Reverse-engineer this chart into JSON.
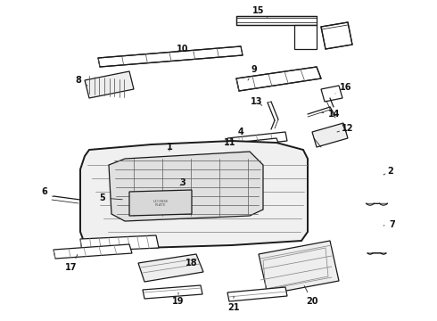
{
  "bg_color": "#ffffff",
  "line_color": "#1a1a1a",
  "label_color": "#111111",
  "label_fs": 7,
  "lw_thick": 1.4,
  "lw_med": 0.9,
  "lw_thin": 0.55,
  "figw": 4.9,
  "figh": 3.6,
  "dpi": 100
}
